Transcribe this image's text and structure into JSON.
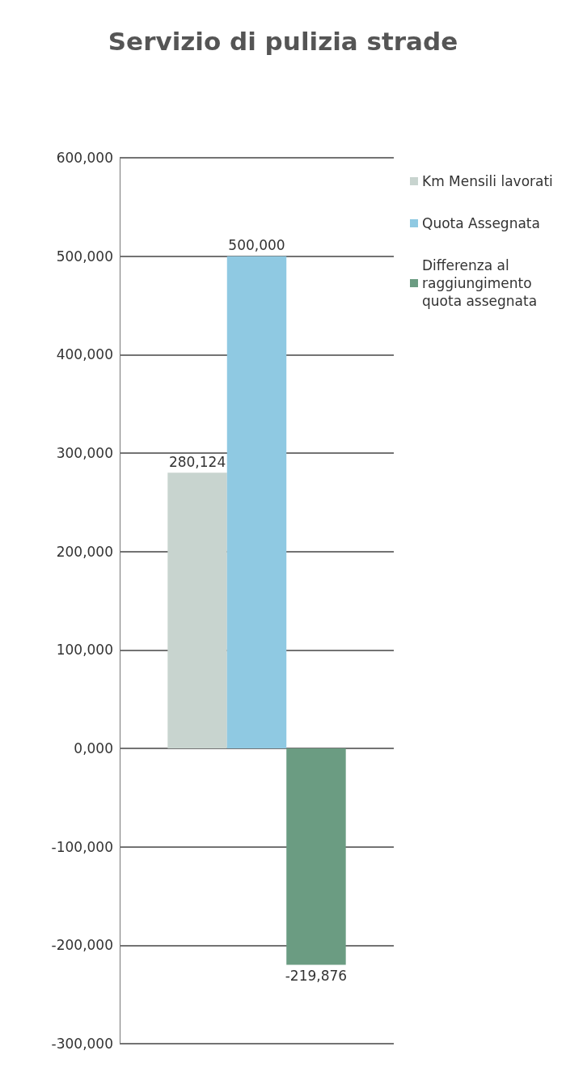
{
  "chart_data": {
    "type": "bar",
    "title": "Servizio di pulizia strade",
    "categories": [
      null
    ],
    "series": [
      {
        "name": "Km Mensili lavorati",
        "color": "#c8d4cf",
        "values": [
          280124
        ],
        "value_labels": [
          "280,124"
        ]
      },
      {
        "name": "Quota Assegnata",
        "color": "#8fc9e2",
        "values": [
          500000
        ],
        "value_labels": [
          "500,000"
        ]
      },
      {
        "name": "Differenza al raggiungimento quota assegnata",
        "color": "#6b9c82",
        "values": [
          -219876
        ],
        "value_labels": [
          "-219,876"
        ]
      }
    ],
    "ylim": [
      -300000,
      600000
    ],
    "yticks": [
      {
        "value": -300000,
        "label": "-300,000"
      },
      {
        "value": -200000,
        "label": "-200,000"
      },
      {
        "value": -100000,
        "label": "-100,000"
      },
      {
        "value": 0,
        "label": "0,000"
      },
      {
        "value": 100000,
        "label": "100,000"
      },
      {
        "value": 200000,
        "label": "200,000"
      },
      {
        "value": 300000,
        "label": "300,000"
      },
      {
        "value": 400000,
        "label": "400,000"
      },
      {
        "value": 500000,
        "label": "500,000"
      },
      {
        "value": 600000,
        "label": "600,000"
      }
    ],
    "grid": "y",
    "legend": "top right"
  }
}
